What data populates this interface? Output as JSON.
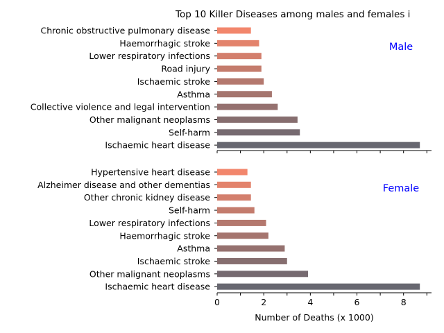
{
  "chart_data": {
    "type": "bar",
    "title": "Top 10 Killer Diseases among males and females i",
    "xlabel": "Number of Deaths (x 1000)",
    "xlim": [
      0,
      9.2
    ],
    "xticks": [
      "0",
      "2",
      "4",
      "6",
      "8"
    ],
    "grid": false,
    "color_light": "#f2866c",
    "color_dark": "#676770",
    "panels": [
      {
        "label": "Male",
        "categories": [
          "Chronic obstructive pulmonary disease",
          "Haemorrhagic stroke",
          "Lower respiratory infections",
          "Road injury",
          "Ischaemic stroke",
          "Asthma",
          "Collective violence and legal intervention",
          "Other malignant neoplasms",
          "Self-harm",
          "Ischaemic heart disease"
        ],
        "values": [
          1.45,
          1.8,
          1.9,
          1.9,
          2.0,
          2.35,
          2.6,
          3.45,
          3.55,
          8.7
        ]
      },
      {
        "label": "Female",
        "categories": [
          "Hypertensive heart disease",
          "Alzheimer disease and other dementias",
          "Other chronic kidney disease",
          "Self-harm",
          "Lower respiratory infections",
          "Haemorrhagic stroke",
          "Asthma",
          "Ischaemic stroke",
          "Other malignant neoplasms",
          "Ischaemic heart disease"
        ],
        "values": [
          1.3,
          1.45,
          1.45,
          1.6,
          2.1,
          2.2,
          2.9,
          3.0,
          3.9,
          8.7
        ]
      }
    ]
  }
}
